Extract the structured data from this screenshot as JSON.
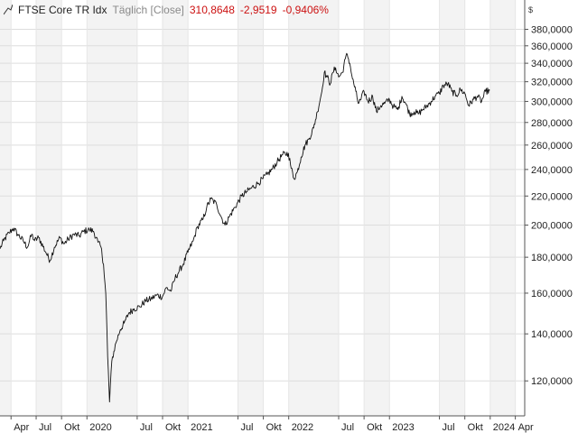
{
  "header": {
    "name": "FTSE Core TR Idx",
    "mode": "Täglich [Close]",
    "last": "310,8648",
    "change": "-2,9519",
    "change_pct": "-0,9406%",
    "currency": "$"
  },
  "colors": {
    "line": "#111111",
    "change_negative": "#cc1111",
    "band_shaded": "#f3f3f3",
    "grid": "#dddddd"
  },
  "chart_data": {
    "type": "line",
    "title": "FTSE Core TR Idx",
    "y_scale": "log",
    "ylim": [
      107,
      392
    ],
    "xlim": [
      "2019-02-20",
      "2024-05-05"
    ],
    "grid": true,
    "legend": "none",
    "y_ticks": [
      {
        "value": 120,
        "label": "120,0000"
      },
      {
        "value": 140,
        "label": "140,0000"
      },
      {
        "value": 160,
        "label": "160,0000"
      },
      {
        "value": 180,
        "label": "180,0000"
      },
      {
        "value": 200,
        "label": "200,0000"
      },
      {
        "value": 220,
        "label": "220,0000"
      },
      {
        "value": 240,
        "label": "240,0000"
      },
      {
        "value": 260,
        "label": "260,0000"
      },
      {
        "value": 280,
        "label": "280,0000"
      },
      {
        "value": 300,
        "label": "300,0000"
      },
      {
        "value": 320,
        "label": "320,0000"
      },
      {
        "value": 340,
        "label": "340,0000"
      },
      {
        "value": 360,
        "label": "360,0000"
      },
      {
        "value": 380,
        "label": "380,0000"
      }
    ],
    "x_ticks": [
      {
        "date": "2019-04-01",
        "label": "Apr"
      },
      {
        "date": "2019-07-01",
        "label": "Jul"
      },
      {
        "date": "2019-10-01",
        "label": "Okt"
      },
      {
        "date": "2020-01-01",
        "label": "2020"
      },
      {
        "date": "2020-07-01",
        "label": "Jul"
      },
      {
        "date": "2020-10-01",
        "label": "Okt"
      },
      {
        "date": "2021-01-01",
        "label": "2021"
      },
      {
        "date": "2021-07-01",
        "label": "Jul"
      },
      {
        "date": "2021-10-01",
        "label": "Okt"
      },
      {
        "date": "2022-01-01",
        "label": "2022"
      },
      {
        "date": "2022-07-01",
        "label": "Jul"
      },
      {
        "date": "2022-10-01",
        "label": "Okt"
      },
      {
        "date": "2023-01-01",
        "label": "2023"
      },
      {
        "date": "2023-07-01",
        "label": "Jul"
      },
      {
        "date": "2023-10-01",
        "label": "Okt"
      },
      {
        "date": "2024-01-01",
        "label": "2024"
      },
      {
        "date": "2024-04-01",
        "label": "Apr"
      }
    ],
    "series": [
      {
        "name": "",
        "points": [
          [
            "2019-02-20",
            185
          ],
          [
            "2019-03-05",
            190
          ],
          [
            "2019-03-25",
            195
          ],
          [
            "2019-04-10",
            198
          ],
          [
            "2019-04-25",
            194
          ],
          [
            "2019-05-15",
            190
          ],
          [
            "2019-05-30",
            186
          ],
          [
            "2019-06-15",
            194
          ],
          [
            "2019-06-25",
            190
          ],
          [
            "2019-07-10",
            192
          ],
          [
            "2019-08-05",
            183
          ],
          [
            "2019-08-20",
            178
          ],
          [
            "2019-09-05",
            186
          ],
          [
            "2019-09-25",
            192
          ],
          [
            "2019-10-10",
            188
          ],
          [
            "2019-10-25",
            191
          ],
          [
            "2019-11-15",
            194
          ],
          [
            "2019-12-05",
            193
          ],
          [
            "2019-12-20",
            196
          ],
          [
            "2020-01-10",
            197
          ],
          [
            "2020-01-25",
            196
          ],
          [
            "2020-02-10",
            189
          ],
          [
            "2020-02-21",
            186
          ],
          [
            "2020-03-01",
            176
          ],
          [
            "2020-03-09",
            160
          ],
          [
            "2020-03-16",
            130
          ],
          [
            "2020-03-23",
            112
          ],
          [
            "2020-03-31",
            128
          ],
          [
            "2020-04-15",
            136
          ],
          [
            "2020-05-01",
            142
          ],
          [
            "2020-05-15",
            145
          ],
          [
            "2020-06-01",
            150
          ],
          [
            "2020-06-20",
            152
          ],
          [
            "2020-07-10",
            153
          ],
          [
            "2020-07-31",
            156
          ],
          [
            "2020-08-20",
            157
          ],
          [
            "2020-09-10",
            159
          ],
          [
            "2020-09-30",
            158
          ],
          [
            "2020-10-15",
            163
          ],
          [
            "2020-10-31",
            161
          ],
          [
            "2020-11-15",
            168
          ],
          [
            "2020-11-30",
            172
          ],
          [
            "2020-12-15",
            176
          ],
          [
            "2021-01-01",
            183
          ],
          [
            "2021-01-20",
            190
          ],
          [
            "2021-02-05",
            199
          ],
          [
            "2021-02-25",
            204
          ],
          [
            "2021-03-10",
            212
          ],
          [
            "2021-03-25",
            218
          ],
          [
            "2021-04-15",
            214
          ],
          [
            "2021-04-30",
            206
          ],
          [
            "2021-05-15",
            200
          ],
          [
            "2021-06-01",
            206
          ],
          [
            "2021-06-20",
            212
          ],
          [
            "2021-07-15",
            220
          ],
          [
            "2021-08-01",
            223
          ],
          [
            "2021-08-20",
            226
          ],
          [
            "2021-09-10",
            229
          ],
          [
            "2021-09-30",
            233
          ],
          [
            "2021-10-15",
            236
          ],
          [
            "2021-11-01",
            240
          ],
          [
            "2021-11-20",
            246
          ],
          [
            "2021-12-10",
            252
          ],
          [
            "2021-12-31",
            253
          ],
          [
            "2022-01-10",
            241
          ],
          [
            "2022-01-20",
            233
          ],
          [
            "2022-02-01",
            238
          ],
          [
            "2022-02-15",
            250
          ],
          [
            "2022-03-01",
            260
          ],
          [
            "2022-03-15",
            265
          ],
          [
            "2022-04-01",
            275
          ],
          [
            "2022-04-15",
            290
          ],
          [
            "2022-05-01",
            310
          ],
          [
            "2022-05-10",
            330
          ],
          [
            "2022-05-20",
            325
          ],
          [
            "2022-06-01",
            318
          ],
          [
            "2022-06-10",
            330
          ],
          [
            "2022-06-20",
            335
          ],
          [
            "2022-07-01",
            325
          ],
          [
            "2022-07-15",
            330
          ],
          [
            "2022-07-25",
            345
          ],
          [
            "2022-08-01",
            350
          ],
          [
            "2022-08-10",
            340
          ],
          [
            "2022-08-20",
            323
          ],
          [
            "2022-09-01",
            310
          ],
          [
            "2022-09-10",
            298
          ],
          [
            "2022-09-20",
            302
          ],
          [
            "2022-10-01",
            310
          ],
          [
            "2022-10-15",
            300
          ],
          [
            "2022-11-01",
            305
          ],
          [
            "2022-11-15",
            290
          ],
          [
            "2022-12-01",
            296
          ],
          [
            "2022-12-15",
            298
          ],
          [
            "2023-01-01",
            302
          ],
          [
            "2023-01-15",
            295
          ],
          [
            "2023-02-01",
            292
          ],
          [
            "2023-02-15",
            305
          ],
          [
            "2023-03-01",
            298
          ],
          [
            "2023-03-15",
            288
          ],
          [
            "2023-04-01",
            290
          ],
          [
            "2023-04-15",
            288
          ],
          [
            "2023-05-01",
            292
          ],
          [
            "2023-05-15",
            295
          ],
          [
            "2023-06-01",
            300
          ],
          [
            "2023-06-15",
            305
          ],
          [
            "2023-07-01",
            308
          ],
          [
            "2023-07-15",
            316
          ],
          [
            "2023-08-01",
            318
          ],
          [
            "2023-08-15",
            310
          ],
          [
            "2023-09-01",
            306
          ],
          [
            "2023-09-15",
            312
          ],
          [
            "2023-10-01",
            308
          ],
          [
            "2023-10-15",
            296
          ],
          [
            "2023-11-01",
            302
          ],
          [
            "2023-11-15",
            305
          ],
          [
            "2023-12-01",
            300
          ],
          [
            "2023-12-15",
            310
          ],
          [
            "2023-12-30",
            311
          ]
        ]
      }
    ]
  }
}
